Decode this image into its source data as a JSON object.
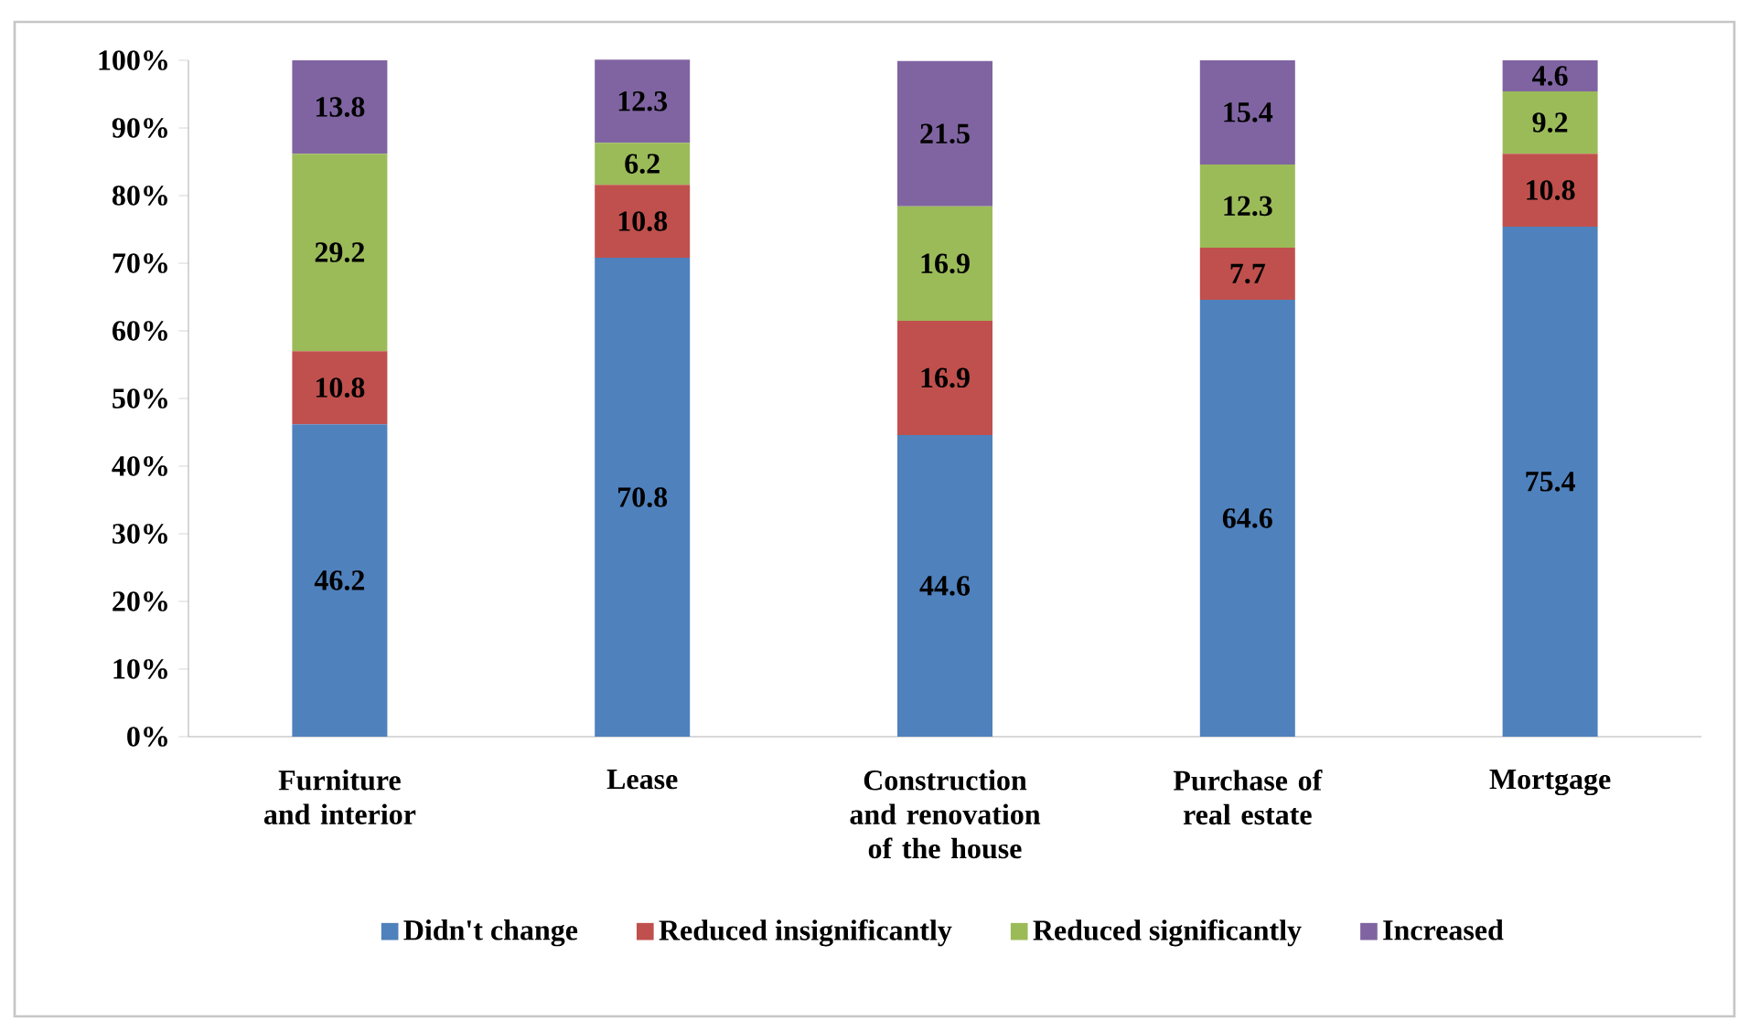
{
  "chart_data": {
    "type": "bar",
    "stacked": true,
    "categories": [
      "Furniture and interior",
      "Lease",
      "Construction and renovation of the house",
      "Purchase of real estate",
      "Mortgage"
    ],
    "series": [
      {
        "name": "Didn't change",
        "color": "#4f81bd",
        "values": [
          46.2,
          70.8,
          44.6,
          64.6,
          75.4
        ]
      },
      {
        "name": "Reduced insignificantly",
        "color": "#c0504d",
        "values": [
          10.8,
          10.8,
          16.9,
          7.7,
          10.8
        ]
      },
      {
        "name": "Reduced significantly",
        "color": "#9bbb59",
        "values": [
          29.2,
          6.2,
          16.9,
          12.3,
          9.2
        ]
      },
      {
        "name": "Increased",
        "color": "#8064a2",
        "values": [
          13.8,
          12.3,
          21.5,
          15.4,
          4.6
        ]
      }
    ],
    "ylim": [
      0,
      100
    ],
    "yticks": [
      {
        "value": 0,
        "label": "0%"
      },
      {
        "value": 10,
        "label": "10%"
      },
      {
        "value": 20,
        "label": "20%"
      },
      {
        "value": 30,
        "label": "30%"
      },
      {
        "value": 40,
        "label": "40%"
      },
      {
        "value": 50,
        "label": "50%"
      },
      {
        "value": 60,
        "label": "60%"
      },
      {
        "value": 70,
        "label": "70%"
      },
      {
        "value": 80,
        "label": "80%"
      },
      {
        "value": 90,
        "label": "90%"
      },
      {
        "value": 100,
        "label": "100%"
      }
    ],
    "data_labels": true,
    "legend": "bottom",
    "grid": false
  }
}
